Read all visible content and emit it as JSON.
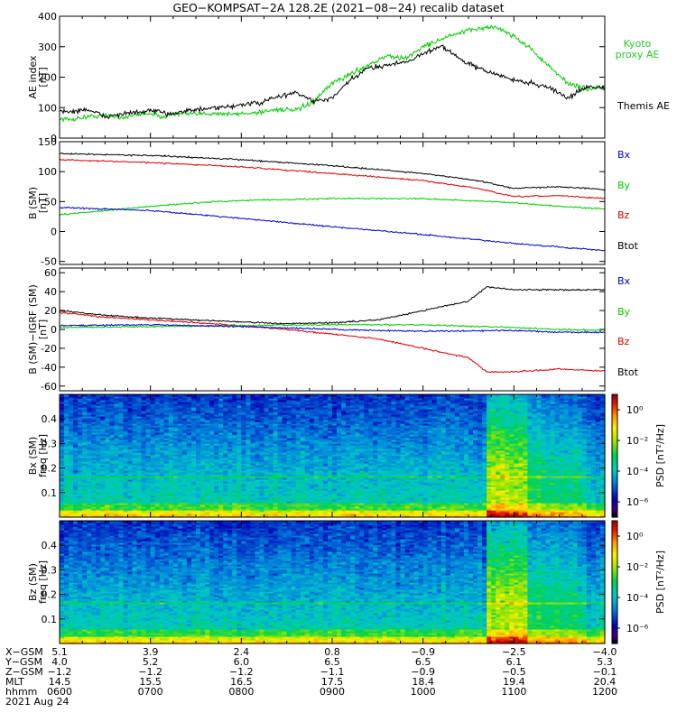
{
  "title": "GEO−KOMPSAT−2A 128.2E (2021−08−24) recalib dataset",
  "colors": {
    "black": "#000000",
    "blue": "#0000cc",
    "green": "#00cc00",
    "red": "#dd0000",
    "kyoto": "#22cc22"
  },
  "chart_data": [
    {
      "type": "line",
      "ylabel": [
        "AE index",
        "[nT]"
      ],
      "ylim": [
        0,
        400
      ],
      "yticks": [
        0,
        100,
        200,
        300,
        400
      ],
      "legend": [
        "Kyoto",
        "proxy AE",
        "Themis AE"
      ],
      "series": [
        {
          "name": "Kyoto proxy AE",
          "color": "green",
          "t": [
            0,
            0.1,
            0.3,
            0.5,
            0.7,
            0.9,
            1.0,
            1.1,
            1.3,
            1.5,
            1.7,
            1.9,
            2.0,
            2.2,
            2.4,
            2.6,
            2.8,
            3.0,
            3.2,
            3.4,
            3.6,
            3.8,
            4.0,
            4.2,
            4.4,
            4.6,
            4.8,
            5.0,
            5.2,
            5.4,
            5.6,
            5.8,
            6.0
          ],
          "y": [
            65,
            60,
            70,
            75,
            68,
            80,
            82,
            70,
            80,
            78,
            82,
            78,
            80,
            85,
            95,
            90,
            120,
            180,
            210,
            240,
            270,
            260,
            300,
            325,
            345,
            360,
            365,
            335,
            290,
            230,
            180,
            160,
            170
          ]
        },
        {
          "name": "Themis AE",
          "color": "black",
          "t": [
            0,
            0.1,
            0.3,
            0.5,
            0.7,
            0.9,
            1.0,
            1.2,
            1.4,
            1.6,
            1.8,
            2.0,
            2.2,
            2.4,
            2.6,
            2.8,
            3.0,
            3.2,
            3.4,
            3.6,
            3.8,
            4.0,
            4.2,
            4.4,
            4.6,
            4.8,
            5.0,
            5.2,
            5.4,
            5.6,
            5.8,
            6.0
          ],
          "y": [
            90,
            85,
            95,
            70,
            80,
            85,
            90,
            80,
            90,
            95,
            100,
            110,
            115,
            135,
            150,
            120,
            130,
            190,
            230,
            240,
            250,
            275,
            305,
            260,
            230,
            210,
            190,
            180,
            165,
            130,
            170,
            165
          ]
        }
      ]
    },
    {
      "type": "line",
      "ylabel": [
        "B (SM)",
        "[nT]"
      ],
      "ylim": [
        -55,
        150
      ],
      "yticks": [
        -50,
        0,
        50,
        100,
        150
      ],
      "legend": [
        "Bx",
        "By",
        "Bz",
        "Btot"
      ],
      "series": [
        {
          "name": "Btot",
          "color": "black",
          "t": [
            0,
            1,
            2,
            3,
            4,
            4.6,
            5,
            5.5,
            6
          ],
          "y": [
            130,
            127,
            120,
            110,
            97,
            85,
            72,
            75,
            70
          ]
        },
        {
          "name": "Bz",
          "color": "red",
          "t": [
            0,
            1,
            2,
            3,
            4,
            4.6,
            5,
            5.5,
            6
          ],
          "y": [
            120,
            115,
            108,
            97,
            85,
            72,
            58,
            60,
            55
          ]
        },
        {
          "name": "By",
          "color": "green",
          "t": [
            0,
            0.5,
            1,
            1.5,
            2,
            3,
            4,
            5,
            5.5,
            6
          ],
          "y": [
            28,
            35,
            42,
            48,
            52,
            55,
            55,
            48,
            42,
            38
          ]
        },
        {
          "name": "Bx",
          "color": "blue",
          "t": [
            0,
            1,
            2,
            3,
            4,
            5,
            6
          ],
          "y": [
            40,
            35,
            22,
            8,
            -5,
            -20,
            -32
          ]
        }
      ]
    },
    {
      "type": "line",
      "ylabel": [
        "B (SM)−IGRF (SM)",
        "[nT]"
      ],
      "ylim": [
        -65,
        65
      ],
      "yticks": [
        -60,
        -40,
        -20,
        0,
        20,
        40,
        60
      ],
      "legend": [
        "Bx",
        "By",
        "Bz",
        "Btot"
      ],
      "series": [
        {
          "name": "Btot",
          "color": "black",
          "t": [
            0,
            0.5,
            1,
            1.5,
            2,
            2.5,
            3,
            3.5,
            4,
            4.5,
            4.7,
            5,
            5.5,
            6
          ],
          "y": [
            20,
            15,
            12,
            10,
            8,
            6,
            7,
            10,
            20,
            30,
            45,
            42,
            42,
            42
          ]
        },
        {
          "name": "Bz",
          "color": "red",
          "t": [
            0,
            0.5,
            1,
            1.5,
            2,
            2.5,
            3,
            3.5,
            4,
            4.5,
            4.7,
            5,
            5.5,
            6
          ],
          "y": [
            18,
            13,
            10,
            7,
            4,
            0,
            -5,
            -10,
            -20,
            -30,
            -45,
            -45,
            -42,
            -44
          ]
        },
        {
          "name": "By",
          "color": "green",
          "t": [
            0,
            1,
            2,
            3,
            4,
            5,
            5.5,
            6
          ],
          "y": [
            2,
            3,
            4,
            5,
            5,
            2,
            0,
            -1
          ]
        },
        {
          "name": "Bx",
          "color": "blue",
          "t": [
            0,
            1,
            2,
            3,
            4,
            5,
            5.5,
            6
          ],
          "y": [
            4,
            5,
            3,
            0,
            -2,
            -1,
            -3,
            -3
          ]
        }
      ]
    },
    {
      "type": "heatmap",
      "ylabel": [
        "Bx (SM)",
        "freq [Hz]"
      ],
      "ylim": [
        0,
        0.5
      ],
      "yticks": [
        0.1,
        0.2,
        0.3,
        0.4
      ],
      "colorbar_label": "PSD [nT²/Hz]",
      "colorbar_ticks": [
        "10⁰",
        "10⁻²",
        "10⁻⁴",
        "10⁻⁶"
      ],
      "colorbar_exponents": [
        0,
        -2,
        -4,
        -6
      ],
      "colorbar_range": [
        -7,
        1
      ]
    },
    {
      "type": "heatmap",
      "ylabel": [
        "Bz (SM)",
        "freq [Hz]"
      ],
      "ylim": [
        0,
        0.5
      ],
      "yticks": [
        0.1,
        0.2,
        0.3,
        0.4
      ],
      "colorbar_label": "PSD [nT²/Hz]",
      "colorbar_ticks": [
        "10⁰",
        "10⁻²",
        "10⁻⁴",
        "10⁻⁶"
      ],
      "colorbar_exponents": [
        0,
        -2,
        -4,
        -6
      ],
      "colorbar_range": [
        -7,
        1
      ]
    }
  ],
  "xaxis": {
    "range": [
      0,
      6
    ],
    "rows": [
      {
        "label": "X−GSM",
        "values": [
          "5.1",
          "3.9",
          "2.4",
          "0.8",
          "−0.9",
          "−2.5",
          "−4.0"
        ]
      },
      {
        "label": "Y−GSM",
        "values": [
          "4.0",
          "5.2",
          "6.0",
          "6.5",
          "6.5",
          "6.1",
          "5.3"
        ]
      },
      {
        "label": "Z−GSM",
        "values": [
          "−1.2",
          "−1.2",
          "−1.2",
          "−1.1",
          "−0.9",
          "−0.5",
          "−0.1"
        ]
      },
      {
        "label": "MLT",
        "values": [
          "14.5",
          "15.5",
          "16.5",
          "17.5",
          "18.4",
          "19.4",
          "20.4"
        ]
      },
      {
        "label": "hhmm",
        "values": [
          "0600",
          "0700",
          "0800",
          "0900",
          "1000",
          "1100",
          "1200"
        ]
      }
    ],
    "date": "2021 Aug 24"
  }
}
